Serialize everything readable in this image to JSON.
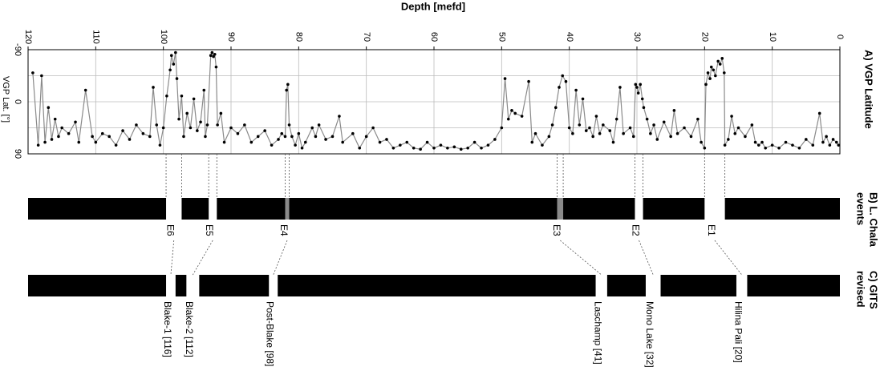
{
  "chart_data": {
    "type": "line",
    "title": "Depth [mefd]",
    "ylabel": "VGP Lat. [°]",
    "panel_label": "A) VGP Latitude",
    "line_color": "#8a8a8a",
    "marker_color": "#000000",
    "xlim": [
      120,
      0
    ],
    "xticks": [
      120,
      110,
      100,
      90,
      80,
      70,
      60,
      50,
      40,
      30,
      20,
      10,
      0
    ],
    "ylim": [
      -90,
      90
    ],
    "yticks": [
      -90,
      0,
      90
    ],
    "grid": true,
    "grid_lines": [
      -45,
      45
    ],
    "x": [
      119.3,
      118.5,
      118,
      117.5,
      117,
      116.5,
      116,
      115.5,
      115,
      114,
      113,
      112.5,
      111.5,
      110.5,
      110,
      109,
      108,
      107,
      106,
      105,
      104,
      103,
      102,
      101.5,
      101,
      100.5,
      100,
      99.5,
      99,
      98.8,
      98.5,
      98.2,
      98,
      97.7,
      97.3,
      97,
      96.5,
      96,
      95.5,
      95,
      94.5,
      94,
      93.8,
      93.5,
      93,
      92.8,
      92.6,
      92.4,
      92.2,
      92,
      91.5,
      91,
      90,
      89,
      88,
      87,
      86,
      85,
      84,
      83,
      82.5,
      82,
      81.8,
      81.6,
      81.4,
      81,
      80.5,
      80,
      79.5,
      79,
      78,
      77.5,
      77,
      76,
      75,
      74,
      73.5,
      72,
      71,
      70,
      69,
      68,
      67,
      66,
      65,
      64,
      63,
      62,
      61,
      60,
      59,
      58,
      57,
      56,
      55,
      54,
      53,
      52,
      51,
      50,
      49.5,
      49,
      48.5,
      48,
      47,
      46,
      45.5,
      45,
      44,
      43,
      42.5,
      42,
      41.5,
      41,
      40.5,
      40,
      39.5,
      39,
      38.5,
      38,
      37.5,
      37,
      36.5,
      36,
      35.5,
      35,
      34,
      33.5,
      33,
      32.5,
      32,
      31,
      30.5,
      30.2,
      30,
      29.8,
      29.5,
      29.2,
      29,
      28.5,
      28,
      27.5,
      27,
      26,
      25,
      24.5,
      24,
      23,
      22,
      21,
      20.5,
      20,
      19.8,
      19.5,
      19.2,
      19,
      18.7,
      18.4,
      18,
      17.7,
      17.4,
      17.1,
      17,
      16.5,
      16,
      15.5,
      15,
      14,
      13,
      12.5,
      12,
      11.5,
      11,
      10,
      9,
      8,
      7,
      6,
      5,
      4,
      3,
      2.5,
      2,
      1.5,
      1,
      0.5,
      0.2
    ],
    "values": [
      -50,
      75,
      -45,
      70,
      10,
      65,
      30,
      60,
      45,
      55,
      35,
      70,
      -20,
      60,
      70,
      55,
      60,
      75,
      50,
      65,
      40,
      55,
      60,
      -25,
      40,
      75,
      45,
      -10,
      -55,
      -80,
      -65,
      -85,
      -40,
      30,
      -10,
      60,
      20,
      45,
      -5,
      50,
      35,
      -20,
      60,
      40,
      -80,
      -85,
      -78,
      -82,
      -60,
      40,
      20,
      70,
      45,
      55,
      40,
      70,
      60,
      50,
      75,
      65,
      55,
      60,
      -20,
      -30,
      40,
      60,
      75,
      55,
      80,
      70,
      45,
      60,
      40,
      65,
      60,
      25,
      70,
      55,
      80,
      60,
      45,
      70,
      65,
      80,
      75,
      70,
      80,
      82,
      70,
      80,
      75,
      80,
      78,
      82,
      80,
      70,
      80,
      75,
      65,
      45,
      -40,
      30,
      15,
      20,
      25,
      -35,
      70,
      55,
      75,
      60,
      40,
      10,
      -25,
      -45,
      -35,
      45,
      55,
      -20,
      40,
      -5,
      50,
      45,
      60,
      25,
      55,
      40,
      50,
      70,
      30,
      -25,
      55,
      45,
      60,
      -30,
      -25,
      -15,
      -30,
      -5,
      10,
      30,
      55,
      40,
      65,
      35,
      60,
      15,
      55,
      45,
      60,
      30,
      70,
      80,
      -30,
      -50,
      -40,
      -60,
      -55,
      -45,
      -70,
      -65,
      -75,
      -50,
      75,
      65,
      25,
      55,
      45,
      60,
      40,
      70,
      75,
      70,
      80,
      75,
      80,
      70,
      75,
      80,
      65,
      75,
      20,
      70,
      60,
      75,
      65,
      70,
      75
    ]
  },
  "events": {
    "panel_label_lines": [
      "B) L. Chala",
      "events"
    ],
    "bar_color": "#000000",
    "items": [
      {
        "label": "E6",
        "start": 99.6,
        "end": 97.3,
        "color": "#ffffff"
      },
      {
        "label": "E5",
        "start": 93.3,
        "end": 92.1,
        "color": "#ffffff"
      },
      {
        "label": "E4",
        "start": 82.0,
        "end": 81.4,
        "color": "#8a8a8a"
      },
      {
        "label": "E3",
        "start": 41.8,
        "end": 40.9,
        "color": "#8a8a8a"
      },
      {
        "label": "E2",
        "start": 30.3,
        "end": 29.1,
        "color": "#ffffff"
      },
      {
        "label": "E1",
        "start": 20.0,
        "end": 17.0,
        "color": "#ffffff"
      }
    ]
  },
  "gits": {
    "panel_label_lines": [
      "C) GITS",
      "revised"
    ],
    "bar_color": "#000000",
    "items": [
      {
        "label": "Blake-1 [116]",
        "start": 99.6,
        "end": 98.2,
        "color": "#ffffff"
      },
      {
        "label": "Blake-2 [112]",
        "start": 96.6,
        "end": 94.7,
        "color": "#ffffff"
      },
      {
        "label": "Post-Blake [98]",
        "start": 84.4,
        "end": 83.1,
        "color": "#ffffff"
      },
      {
        "label": "Laschamp [41]",
        "start": 36.1,
        "end": 34.4,
        "color": "#ffffff"
      },
      {
        "label": "Mono Lake [32]",
        "start": 28.7,
        "end": 26.5,
        "color": "#ffffff"
      },
      {
        "label": "Hilina Pali [20]",
        "start": 15.3,
        "end": 13.7,
        "color": "#ffffff"
      }
    ]
  }
}
